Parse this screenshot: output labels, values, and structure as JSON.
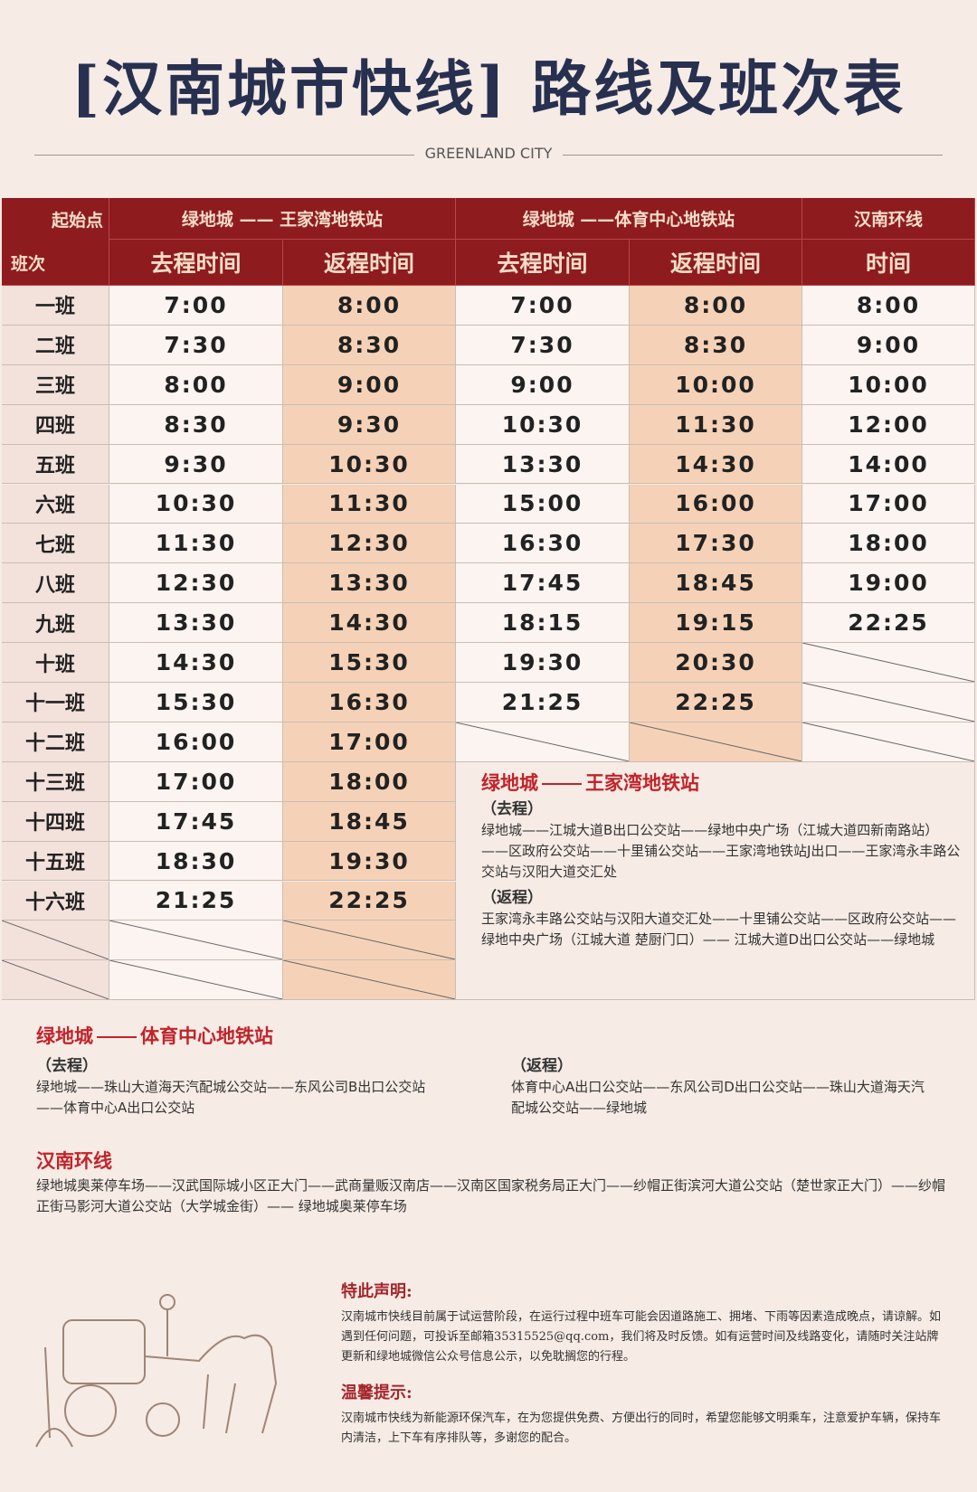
{
  "header": {
    "title": "[汉南城市快线] 路线及班次表",
    "brand": "GREENLAND CITY"
  },
  "table": {
    "corner_top": "起始点",
    "corner_bottom": "班次",
    "groups": [
      "绿地城 —— 王家湾地铁站",
      "绿地城 ——体育中心地铁站",
      "汉南环线"
    ],
    "columns": [
      "去程时间",
      "返程时间",
      "去程时间",
      "返程时间",
      "时间"
    ],
    "rows": [
      {
        "label": "一班",
        "times": [
          "7:00",
          "8:00",
          "7:00",
          "8:00",
          "8:00"
        ]
      },
      {
        "label": "二班",
        "times": [
          "7:30",
          "8:30",
          "7:30",
          "8:30",
          "9:00"
        ]
      },
      {
        "label": "三班",
        "times": [
          "8:00",
          "9:00",
          "9:00",
          "10:00",
          "10:00"
        ]
      },
      {
        "label": "四班",
        "times": [
          "8:30",
          "9:30",
          "10:30",
          "11:30",
          "12:00"
        ]
      },
      {
        "label": "五班",
        "times": [
          "9:30",
          "10:30",
          "13:30",
          "14:30",
          "14:00"
        ]
      },
      {
        "label": "六班",
        "times": [
          "10:30",
          "11:30",
          "15:00",
          "16:00",
          "17:00"
        ]
      },
      {
        "label": "七班",
        "times": [
          "11:30",
          "12:30",
          "16:30",
          "17:30",
          "18:00"
        ]
      },
      {
        "label": "八班",
        "times": [
          "12:30",
          "13:30",
          "17:45",
          "18:45",
          "19:00"
        ]
      },
      {
        "label": "九班",
        "times": [
          "13:30",
          "14:30",
          "18:15",
          "19:15",
          "22:25"
        ]
      },
      {
        "label": "十班",
        "times": [
          "14:30",
          "15:30",
          "19:30",
          "20:30",
          null
        ]
      },
      {
        "label": "十一班",
        "times": [
          "15:30",
          "16:30",
          "21:25",
          "22:25",
          null
        ]
      },
      {
        "label": "十二班",
        "times": [
          "16:00",
          "17:00",
          null,
          null,
          null
        ]
      },
      {
        "label": "十三班",
        "times": [
          "17:00",
          "18:00"
        ]
      },
      {
        "label": "十四班",
        "times": [
          "17:45",
          "18:45"
        ]
      },
      {
        "label": "十五班",
        "times": [
          "18:30",
          "19:30"
        ]
      },
      {
        "label": "十六班",
        "times": [
          "21:25",
          "22:25"
        ]
      }
    ]
  },
  "routes": [
    {
      "from": "绿地城",
      "to": "王家湾地铁站",
      "outbound_label": "（去程）",
      "outbound": "绿地城——江城大道B出口公交站——绿地中央广场（江城大道四新南路站）——区政府公交站——十里铺公交站——王家湾地铁站J出口——王家湾永丰路公交站与汉阳大道交汇处",
      "return_label": "（返程）",
      "return": "王家湾永丰路公交站与汉阳大道交汇处——十里铺公交站——区政府公交站——绿地中央广场（江城大道 楚厨门口）—— 江城大道D出口公交站——绿地城"
    },
    {
      "from": "绿地城",
      "to": "体育中心地铁站",
      "outbound_label": "（去程）",
      "outbound": "绿地城——珠山大道海天汽配城公交站——东风公司B出口公交站——体育中心A出口公交站",
      "return_label": "（返程）",
      "return": "体育中心A出口公交站——东风公司D出口公交站——珠山大道海天汽配城公交站——绿地城"
    },
    {
      "name": "汉南环线",
      "stops": "绿地城奥莱停车场——汉武国际城小区正大门——武商量贩汉南店——汉南区国家税务局正大门——纱帽正街滨河大道公交站（楚世家正大门）——纱帽正街马影河大道公交站（大学城金街）—— 绿地城奥莱停车场"
    }
  ],
  "notices": [
    {
      "title": "特此声明:",
      "text": "汉南城市快线目前属于试运营阶段，在运行过程中班车可能会因道路施工、拥堵、下雨等因素造成晚点，请谅解。如遇到任何问题，可投诉至邮箱35315525@qq.com，我们将及时反馈。如有运营时间及线路变化，请随时关注站牌更新和绿地城微信公众号信息公示，以免耽搁您的行程。"
    },
    {
      "title": "温馨提示:",
      "text": "汉南城市快线为新能源环保汽车，在为您提供免费、方便出行的同时，希望您能够文明乘车，注意爱护车辆，保持车内清洁，上下车有序排队等，多谢您的配合。"
    }
  ]
}
